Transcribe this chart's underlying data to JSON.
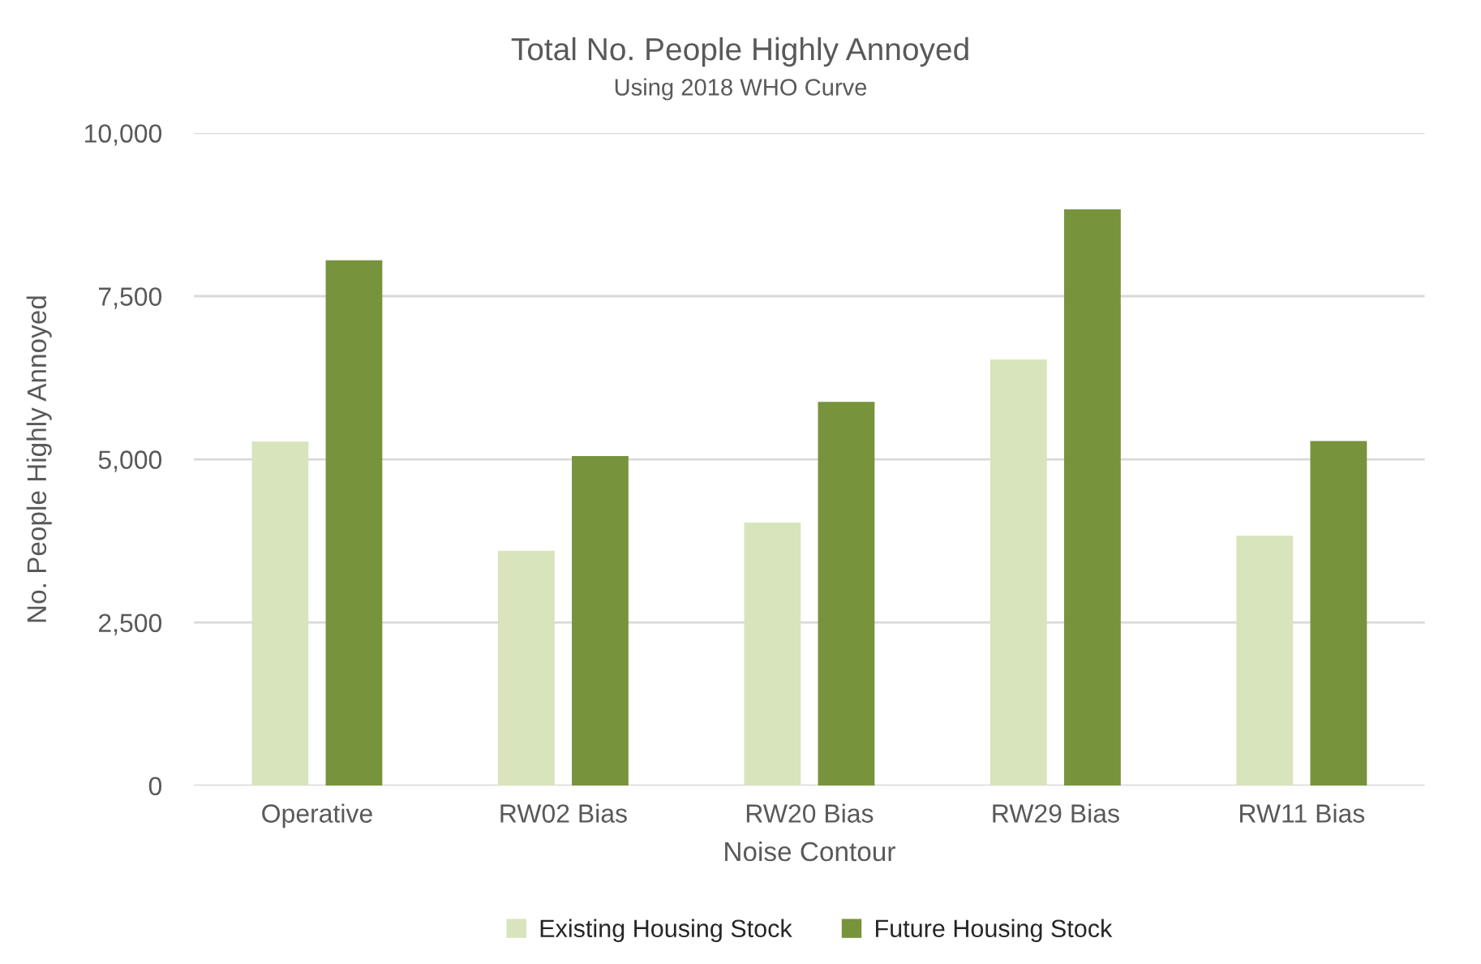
{
  "chart_data": {
    "type": "bar",
    "title": "Total No. People Highly Annoyed",
    "subtitle": "Using 2018 WHO Curve",
    "xlabel": "Noise Contour",
    "ylabel": "No. People Highly Annoyed",
    "categories": [
      "Operative",
      "RW02 Bias",
      "RW20 Bias",
      "RW29 Bias",
      "RW11 Bias"
    ],
    "series": [
      {
        "name": "Existing Housing Stock",
        "color": "#d8e4bc",
        "values": [
          5270,
          3600,
          4030,
          6530,
          3830
        ]
      },
      {
        "name": "Future Housing Stock",
        "color": "#77933c",
        "values": [
          8050,
          5050,
          5880,
          8830,
          5280
        ]
      }
    ],
    "ylim": [
      0,
      10000
    ],
    "yticks": [
      {
        "value": 0,
        "label": "0"
      },
      {
        "value": 2500,
        "label": "2,500"
      },
      {
        "value": 5000,
        "label": "5,000"
      },
      {
        "value": 7500,
        "label": "7,500"
      },
      {
        "value": 10000,
        "label": "10,000"
      }
    ],
    "grid": "y",
    "legend": "bottom"
  }
}
